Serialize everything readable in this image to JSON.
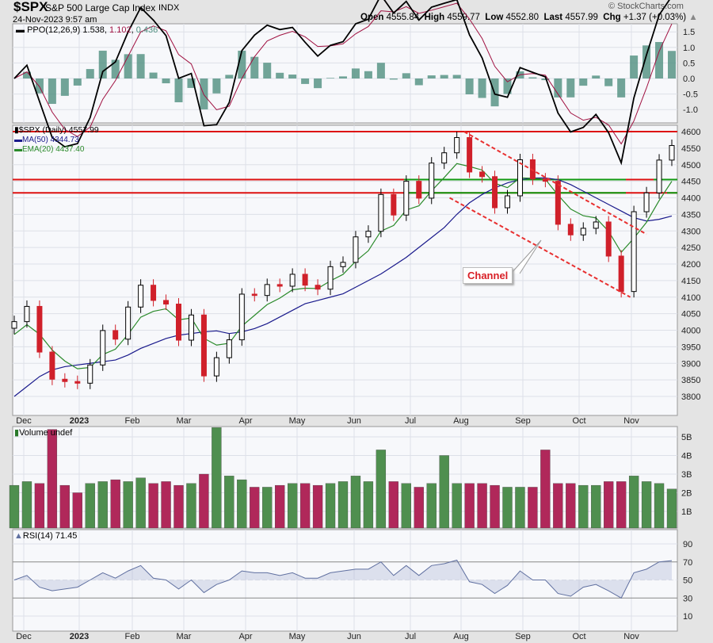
{
  "header": {
    "symbol": "$SPX",
    "name": "S&P 500 Large Cap Index",
    "exchange": "INDX",
    "datetime": "24-Nov-2023 9:57 am",
    "copyright": "© StockCharts.com",
    "open_label": "Open",
    "open": "4555.84",
    "high_label": "High",
    "high": "4559.77",
    "low_label": "Low",
    "low": "4552.80",
    "last_label": "Last",
    "last": "4557.99",
    "chg_label": "Chg",
    "chg": "+1.37 (+0.03%)"
  },
  "colors": {
    "up": "#ffffff",
    "down": "#d0202a",
    "ma50": "#1a1a8c",
    "ema20": "#2a8a2a",
    "resistance": "#dd1111",
    "support": "#119911",
    "channel": "#e83030",
    "ppo": "#000000",
    "signal": "#a01040",
    "hist": "#4f8f80",
    "vol_up": "#4f8f4f",
    "vol_down": "#b0285a",
    "rsi": "#6070a0"
  },
  "chart_data": [
    {
      "type": "candlestick",
      "title": "$SPX (Daily) 4557.99",
      "interval": "weekly closes (approx.)",
      "x": [
        "2022-11-25",
        "2022-12-02",
        "2022-12-09",
        "2022-12-16",
        "2022-12-23",
        "2022-12-30",
        "2023-01-06",
        "2023-01-13",
        "2023-01-20",
        "2023-01-27",
        "2023-02-03",
        "2023-02-10",
        "2023-02-17",
        "2023-02-24",
        "2023-03-03",
        "2023-03-10",
        "2023-03-17",
        "2023-03-24",
        "2023-03-31",
        "2023-04-06",
        "2023-04-14",
        "2023-04-21",
        "2023-04-28",
        "2023-05-05",
        "2023-05-12",
        "2023-05-19",
        "2023-05-26",
        "2023-06-02",
        "2023-06-09",
        "2023-06-16",
        "2023-06-23",
        "2023-06-30",
        "2023-07-07",
        "2023-07-14",
        "2023-07-21",
        "2023-07-28",
        "2023-08-04",
        "2023-08-11",
        "2023-08-18",
        "2023-08-25",
        "2023-09-01",
        "2023-09-08",
        "2023-09-15",
        "2023-09-22",
        "2023-09-29",
        "2023-10-06",
        "2023-10-13",
        "2023-10-20",
        "2023-10-27",
        "2023-11-03",
        "2023-11-10",
        "2023-11-17",
        "2023-11-24"
      ],
      "close": [
        4026,
        4072,
        3934,
        3852,
        3845,
        3840,
        3895,
        3999,
        3973,
        4070,
        4136,
        4090,
        4079,
        3970,
        4046,
        3862,
        3917,
        3971,
        4109,
        4105,
        4138,
        4133,
        4169,
        4136,
        4124,
        4192,
        4205,
        4282,
        4299,
        4410,
        4348,
        4450,
        4399,
        4505,
        4536,
        4582,
        4478,
        4464,
        4370,
        4406,
        4515,
        4457,
        4450,
        4320,
        4288,
        4308,
        4327,
        4224,
        4117,
        4358,
        4415,
        4514,
        4558
      ],
      "ma50": [
        3800,
        3830,
        3860,
        3880,
        3890,
        3895,
        3900,
        3905,
        3910,
        3925,
        3945,
        3960,
        3975,
        3985,
        3990,
        3995,
        3998,
        3990,
        3995,
        4005,
        4020,
        4040,
        4060,
        4080,
        4090,
        4100,
        4110,
        4130,
        4150,
        4170,
        4195,
        4220,
        4250,
        4280,
        4310,
        4350,
        4385,
        4410,
        4430,
        4445,
        4455,
        4460,
        4460,
        4455,
        4440,
        4420,
        4400,
        4380,
        4360,
        4340,
        4330,
        4335,
        4345
      ],
      "legend": [
        {
          "name": "$SPX (Daily) 4557.99"
        },
        {
          "name": "MA(50) 4344.73"
        },
        {
          "name": "EMA(20) 4437.40"
        }
      ],
      "horizontal_lines": [
        4600,
        4455,
        4415
      ],
      "channel": {
        "upper": [
          [
            "2023-08-01",
            4600
          ],
          [
            "2023-11-10",
            4290
          ]
        ],
        "lower": [
          [
            "2023-07-24",
            4400
          ],
          [
            "2023-11-01",
            4100
          ]
        ]
      },
      "annotation": "Channel",
      "y_ticks": [
        4600,
        4550,
        4500,
        4450,
        4400,
        4350,
        4300,
        4250,
        4200,
        4150,
        4100,
        4050,
        4000,
        3950,
        3900,
        3850,
        3800
      ],
      "ylim": [
        3760,
        4610
      ],
      "x_tick_labels": [
        "Dec",
        "2023",
        "Feb",
        "Mar",
        "Apr",
        "May",
        "Jun",
        "Jul",
        "Aug",
        "Sep",
        "Oct",
        "Nov"
      ]
    },
    {
      "type": "line",
      "title": "PPO(12,26,9)",
      "values_label": [
        "1.538",
        "1.102",
        "0.436"
      ],
      "y_ticks": [
        "1.5",
        "1.0",
        "0.5",
        "0.0",
        "-0.5",
        "-1.0"
      ],
      "ylim": [
        -1.3,
        1.7
      ]
    },
    {
      "type": "bar",
      "title": "Volume undef",
      "y_ticks": [
        "5B",
        "4B",
        "3B",
        "2B",
        "1B"
      ],
      "values": [
        2.4,
        2.6,
        2.5,
        5.4,
        2.4,
        2.0,
        2.5,
        2.6,
        2.7,
        2.6,
        2.8,
        2.5,
        2.6,
        2.4,
        2.5,
        3.0,
        5.5,
        2.9,
        2.7,
        2.3,
        2.3,
        2.4,
        2.5,
        2.5,
        2.4,
        2.5,
        2.6,
        2.9,
        2.6,
        4.3,
        2.6,
        2.5,
        2.3,
        2.5,
        4.0,
        2.5,
        2.5,
        2.5,
        2.4,
        2.3,
        2.3,
        2.3,
        4.3,
        2.5,
        2.5,
        2.4,
        2.4,
        2.6,
        2.6,
        2.9,
        2.6,
        2.5,
        2.2
      ]
    },
    {
      "type": "line",
      "title": "RSI(14) 71.45",
      "y_ticks": [
        "90",
        "70",
        "50",
        "30",
        "10"
      ],
      "ylim": [
        0,
        100
      ],
      "values": [
        50,
        55,
        42,
        38,
        40,
        42,
        50,
        58,
        52,
        60,
        66,
        52,
        50,
        40,
        50,
        36,
        45,
        50,
        60,
        58,
        58,
        55,
        58,
        52,
        52,
        58,
        60,
        62,
        62,
        70,
        55,
        66,
        55,
        66,
        68,
        72,
        48,
        45,
        35,
        44,
        60,
        50,
        50,
        35,
        32,
        42,
        45,
        38,
        30,
        58,
        62,
        70,
        71.45
      ]
    }
  ]
}
